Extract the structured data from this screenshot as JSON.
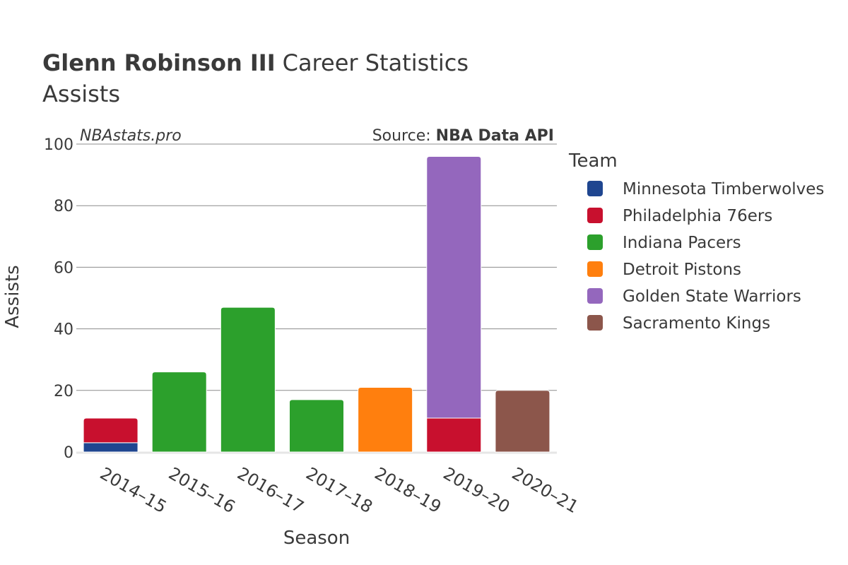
{
  "chart_data": {
    "type": "bar",
    "stacked": true,
    "title": "Glenn Robinson III",
    "title_suffix": "Career Statistics",
    "subtitle": "Assists",
    "watermark": "NBAstats.pro",
    "source_label": "Source: ",
    "source_name": "NBA Data API",
    "xlabel": "Season",
    "ylabel": "Assists",
    "ylim": [
      0,
      100
    ],
    "yticks": [
      0,
      20,
      40,
      60,
      80,
      100
    ],
    "categories": [
      "2014–15",
      "2015–16",
      "2016–17",
      "2017–18",
      "2018–19",
      "2019–20",
      "2020–21"
    ],
    "legend_title": "Team",
    "legend_position": "right",
    "series": [
      {
        "name": "Minnesota Timberwolves",
        "color": "#1f4690",
        "values": [
          3,
          0,
          0,
          0,
          0,
          0,
          0
        ]
      },
      {
        "name": "Philadelphia 76ers",
        "color": "#c8102e",
        "values": [
          8,
          0,
          0,
          0,
          0,
          11,
          0
        ]
      },
      {
        "name": "Indiana Pacers",
        "color": "#2ca02c",
        "values": [
          0,
          26,
          47,
          17,
          0,
          0,
          0
        ]
      },
      {
        "name": "Detroit Pistons",
        "color": "#ff7f0e",
        "values": [
          0,
          0,
          0,
          0,
          21,
          0,
          0
        ]
      },
      {
        "name": "Golden State Warriors",
        "color": "#9467bd",
        "values": [
          0,
          0,
          0,
          0,
          0,
          85,
          0
        ]
      },
      {
        "name": "Sacramento Kings",
        "color": "#8c564b",
        "values": [
          0,
          0,
          0,
          0,
          0,
          0,
          20
        ]
      }
    ]
  }
}
